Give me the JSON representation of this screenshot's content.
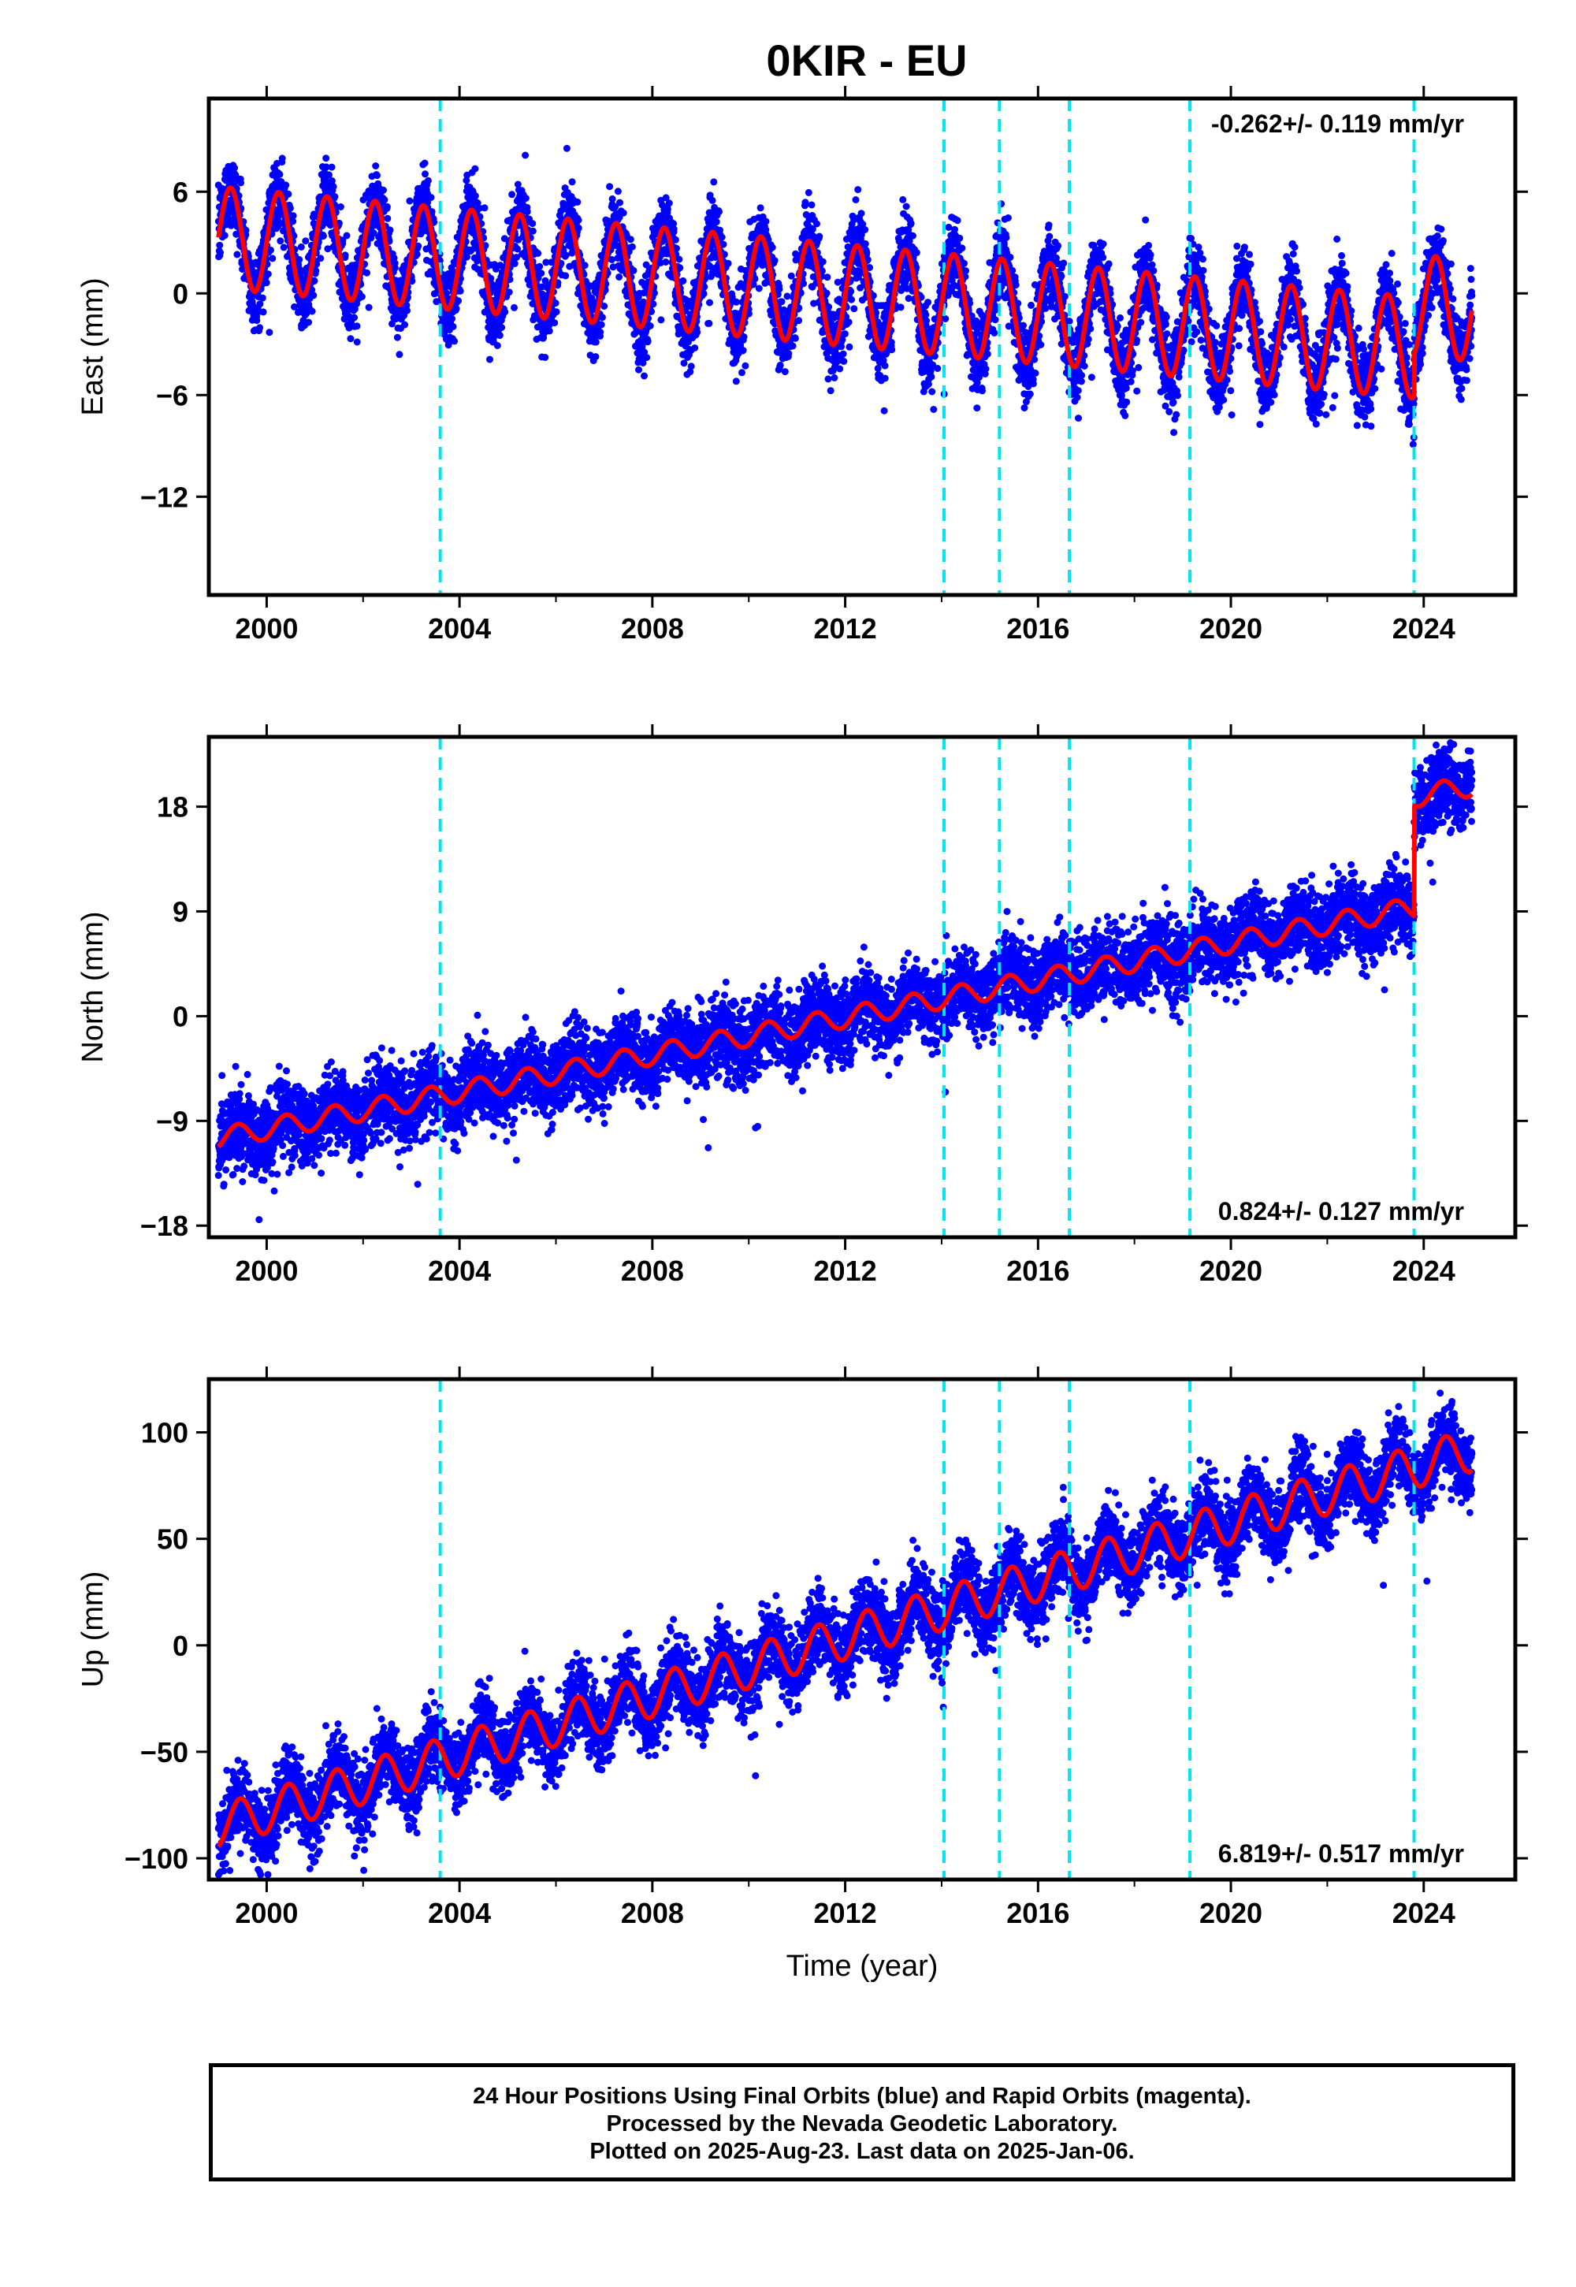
{
  "title": "0KIR - EU",
  "colors": {
    "data_points": "#0000ff",
    "model_line": "#ff0000",
    "event_lines": "#00e5ee",
    "frame": "#000000"
  },
  "chart_data": [
    {
      "type": "scatter",
      "ylabel": "East (mm)",
      "xlabel": "",
      "xlim": [
        1998.8,
        2025.9
      ],
      "ylim": [
        -17.8,
        11.5
      ],
      "yticks": [
        -12,
        -6,
        0,
        6
      ],
      "xticks": [
        2000,
        2004,
        2008,
        2012,
        2016,
        2020,
        2024
      ],
      "event_lines": [
        2003.6,
        2014.05,
        2015.2,
        2016.65,
        2019.15,
        2023.8
      ],
      "rate_label": "-0.262+/- 0.119 mm/yr",
      "rate_position": "top-right",
      "model": {
        "t_start": 1999.0,
        "t_end": 2025.0,
        "offset_at_start": 3.3,
        "slope": -0.262,
        "amplitude": 3.0,
        "phase_year": 1999.25,
        "steps": [
          {
            "t": 2023.8,
            "dy": 2.5
          }
        ]
      }
    },
    {
      "type": "scatter",
      "ylabel": "North (mm)",
      "xlabel": "",
      "xlim": [
        1998.8,
        2025.9
      ],
      "ylim": [
        -19,
        24
      ],
      "yticks": [
        -18,
        -9,
        0,
        9,
        18
      ],
      "xticks": [
        2000,
        2004,
        2008,
        2012,
        2016,
        2020,
        2024
      ],
      "event_lines": [
        2003.6,
        2014.05,
        2015.2,
        2016.65,
        2019.15,
        2023.8
      ],
      "rate_label": "0.824+/- 0.127 mm/yr",
      "rate_position": "bottom-right",
      "model": {
        "t_start": 1999.0,
        "t_end": 2025.0,
        "offset_at_start": -10.5,
        "slope": 0.8,
        "amplitude": 0.9,
        "phase_year": 1999.4,
        "steps": [
          {
            "t": 2023.8,
            "dy": 9.5
          }
        ]
      }
    },
    {
      "type": "scatter",
      "ylabel": "Up (mm)",
      "xlabel": "Time (year)",
      "xlim": [
        1998.8,
        2025.9
      ],
      "ylim": [
        -110,
        125
      ],
      "yticks": [
        -100,
        -50,
        0,
        50,
        100
      ],
      "xticks": [
        2000,
        2004,
        2008,
        2012,
        2016,
        2020,
        2024
      ],
      "event_lines": [
        2003.6,
        2014.05,
        2015.2,
        2016.65,
        2019.15,
        2023.8
      ],
      "rate_label": "6.819+/- 0.517 mm/yr",
      "rate_position": "bottom-right",
      "model": {
        "t_start": 1999.0,
        "t_end": 2025.0,
        "offset_at_start": -85,
        "slope": 6.8,
        "amplitude": 10,
        "phase_year": 1999.45,
        "steps": []
      }
    }
  ],
  "footer": {
    "line1": "24 Hour Positions Using Final Orbits (blue) and Rapid Orbits (magenta).",
    "line2": "Processed by the Nevada Geodetic Laboratory.",
    "line3": "Plotted on 2025-Aug-23. Last data on 2025-Jan-06."
  }
}
